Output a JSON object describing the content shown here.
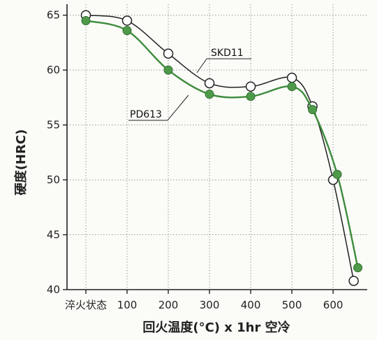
{
  "chart_data": {
    "type": "line",
    "title": "",
    "xlabel": "回火温度(°C) x 1hr 空冷",
    "ylabel": "硬度(HRC)",
    "ylim": [
      40,
      66
    ],
    "x_tick_labels": [
      "淬火状态",
      "100",
      "200",
      "300",
      "400",
      "500",
      "600"
    ],
    "y_ticks": [
      40,
      45,
      50,
      55,
      60,
      65
    ],
    "grid": true,
    "colors": {
      "SKD11": "#222222",
      "PD613": "#3c8c3c"
    },
    "series": [
      {
        "name": "SKD11",
        "marker": "open-circle",
        "points": [
          {
            "x": "淬火状态",
            "y": 65.0
          },
          {
            "x": 100,
            "y": 64.5
          },
          {
            "x": 200,
            "y": 61.5
          },
          {
            "x": 300,
            "y": 58.8
          },
          {
            "x": 400,
            "y": 58.5
          },
          {
            "x": 500,
            "y": 59.3
          },
          {
            "x": 550,
            "y": 56.7
          },
          {
            "x": 600,
            "y": 50.0
          },
          {
            "x": 650,
            "y": 40.8
          }
        ]
      },
      {
        "name": "PD613",
        "marker": "filled-circle",
        "points": [
          {
            "x": "淬火状态",
            "y": 64.5
          },
          {
            "x": 100,
            "y": 63.6
          },
          {
            "x": 200,
            "y": 60.0
          },
          {
            "x": 300,
            "y": 57.8
          },
          {
            "x": 400,
            "y": 57.6
          },
          {
            "x": 500,
            "y": 58.5
          },
          {
            "x": 550,
            "y": 56.4
          },
          {
            "x": 610,
            "y": 50.5
          },
          {
            "x": 660,
            "y": 42.0
          }
        ]
      }
    ]
  }
}
